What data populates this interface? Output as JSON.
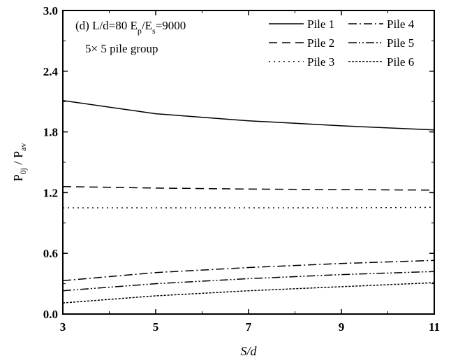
{
  "chart_data": {
    "type": "line",
    "title": "",
    "xlabel": "S/d",
    "ylabel": "P0j / Pav",
    "ylabel_parts": {
      "main1": "P",
      "sub1": "0j",
      "sep": " / P",
      "sub2": "av"
    },
    "xlim": [
      3,
      11
    ],
    "ylim": [
      0.0,
      3.0
    ],
    "x_ticks": [
      3,
      5,
      7,
      9,
      11
    ],
    "x_tick_labels": [
      "3",
      "5",
      "7",
      "9",
      "11"
    ],
    "y_ticks": [
      0.0,
      0.6,
      1.2,
      1.8,
      2.4,
      3.0
    ],
    "y_tick_labels": [
      "0.0",
      "0.6",
      "1.2",
      "1.8",
      "2.4",
      "3.0"
    ],
    "grid": false,
    "legend_position": "top-right",
    "annotations": {
      "line1": {
        "prefix": "(d)  L/d=80  E",
        "sub1": "p",
        "mid": "/E",
        "sub2": "s",
        "suffix": "=9000"
      },
      "line2": "5× 5 pile group"
    },
    "x": [
      3,
      5,
      7,
      9,
      11
    ],
    "series": [
      {
        "name": "Pile 1",
        "dash": "",
        "values": [
          2.11,
          1.98,
          1.91,
          1.86,
          1.82
        ]
      },
      {
        "name": "Pile 2",
        "dash": "12,7",
        "values": [
          1.26,
          1.245,
          1.235,
          1.23,
          1.225
        ]
      },
      {
        "name": "Pile 3",
        "dash": "2,5",
        "values": [
          1.05,
          1.05,
          1.05,
          1.05,
          1.055
        ]
      },
      {
        "name": "Pile 4",
        "dash": "12,4,2,4",
        "values": [
          0.33,
          0.41,
          0.46,
          0.5,
          0.53
        ]
      },
      {
        "name": "Pile 5",
        "dash": "12,3,2,3,2,3",
        "values": [
          0.23,
          0.3,
          0.35,
          0.39,
          0.42
        ]
      },
      {
        "name": "Pile 6",
        "dash": "3,2",
        "values": [
          0.11,
          0.18,
          0.23,
          0.27,
          0.31
        ]
      }
    ]
  }
}
